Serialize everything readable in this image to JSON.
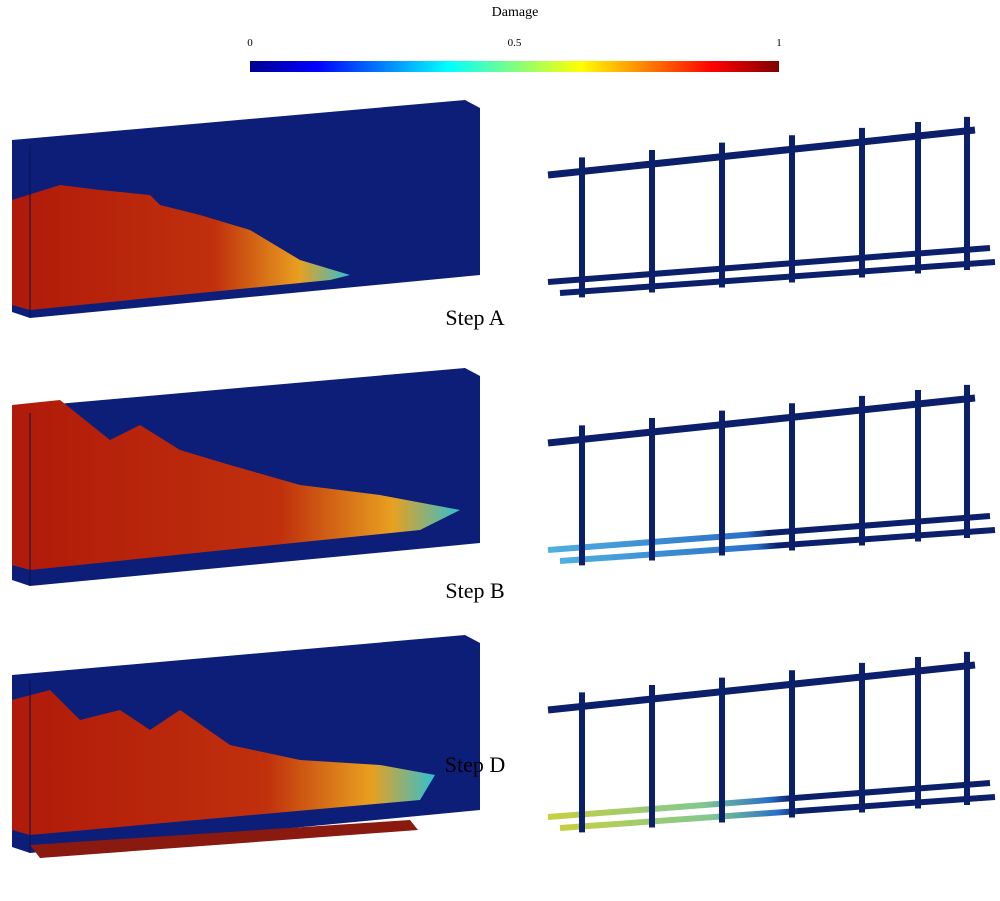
{
  "colorbar": {
    "title": "Damage",
    "lim": [
      0,
      1
    ],
    "ticks": [
      0,
      0.5,
      1
    ]
  },
  "panels": [
    {
      "caption": "Step A"
    },
    {
      "caption": "Step B"
    },
    {
      "caption": "Step D"
    }
  ]
}
